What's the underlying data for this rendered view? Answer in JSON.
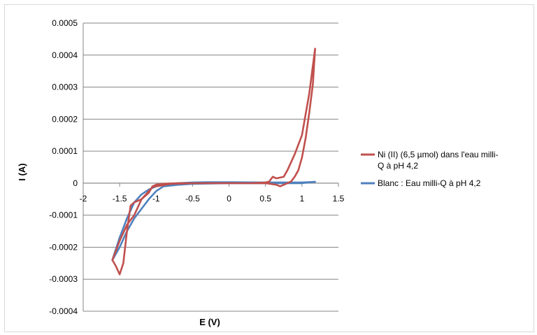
{
  "chart_data": {
    "type": "scatter",
    "title": "",
    "xlabel": "E (V)",
    "ylabel": "I (A)",
    "xlim": [
      -2,
      1.5
    ],
    "ylim": [
      -0.0004,
      0.0005
    ],
    "x_ticks": [
      "-2",
      "-1.5",
      "-1",
      "-0.5",
      "0",
      "0.5",
      "1",
      "1.5"
    ],
    "y_ticks": [
      "0.0005",
      "0.0004",
      "0.0003",
      "0.0002",
      "0.0001",
      "0",
      "-0.0001",
      "-0.0002",
      "-0.0003",
      "-0.0004"
    ],
    "grid": "horizontal",
    "legend_position": "right",
    "series": [
      {
        "name": "Ni (II) (6,5 µmol) dans l'eau milli-Q à pH 4,2",
        "color": "#c0504d",
        "x": [
          -1.6,
          -1.55,
          -1.5,
          -1.45,
          -1.4,
          -1.35,
          -1.3,
          -1.2,
          -1.1,
          -1.05,
          -1.0,
          -0.9,
          -0.7,
          -0.5,
          0.0,
          0.3,
          0.5,
          0.55,
          0.6,
          0.65,
          0.75,
          0.8,
          0.9,
          1.0,
          1.1,
          1.18,
          1.15,
          1.1,
          1.05,
          1.0,
          0.95,
          0.9,
          0.85,
          0.8,
          0.75,
          0.7,
          0.65,
          0.5,
          0.3,
          0.0,
          -0.5,
          -0.8,
          -1.0,
          -1.05,
          -1.1,
          -1.2,
          -1.3,
          -1.4,
          -1.5,
          -1.6
        ],
        "y": [
          -0.00024,
          -0.00026,
          -0.000285,
          -0.00025,
          -0.00015,
          -7e-05,
          -6e-05,
          -5e-05,
          -3e-05,
          -1e-05,
          -5e-06,
          -2e-06,
          0.0,
          0.0,
          0.0,
          0.0,
          2e-06,
          5e-06,
          2e-05,
          1.5e-05,
          2e-05,
          4e-05,
          9e-05,
          0.00015,
          0.00028,
          0.00042,
          0.00031,
          0.00022,
          0.00014,
          8e-05,
          4e-05,
          2e-05,
          5e-06,
          0.0,
          -5e-06,
          -1e-05,
          -5e-06,
          0.0,
          0.0,
          0.0,
          0.0,
          -2e-06,
          -1e-05,
          -1.2e-05,
          -2.5e-05,
          -5e-05,
          -0.0001,
          -0.00013,
          -0.00018,
          -0.00024
        ]
      },
      {
        "name": "Blanc : Eau milli-Q à pH 4,2",
        "color": "#4f81bd",
        "x": [
          -1.6,
          -1.5,
          -1.4,
          -1.3,
          -1.2,
          -1.1,
          -1.0,
          -0.9,
          -0.7,
          -0.5,
          -0.3,
          0.0,
          0.5,
          1.0,
          1.18,
          1.0,
          0.5,
          0.0,
          -0.5,
          -0.7,
          -0.9,
          -1.0,
          -1.1,
          -1.2,
          -1.3,
          -1.4,
          -1.5,
          -1.6
        ],
        "y": [
          -0.00024,
          -0.00017,
          -0.00011,
          -6e-05,
          -3.5e-05,
          -2e-05,
          -1e-05,
          -5e-06,
          0.0,
          2e-06,
          3e-06,
          3e-06,
          2e-06,
          2e-06,
          4e-06,
          0.0,
          0.0,
          0.0,
          -2e-06,
          -5e-06,
          -1e-05,
          -2.5e-05,
          -5e-05,
          -8e-05,
          -0.00011,
          -0.00015,
          -0.0002,
          -0.00024
        ]
      }
    ]
  }
}
